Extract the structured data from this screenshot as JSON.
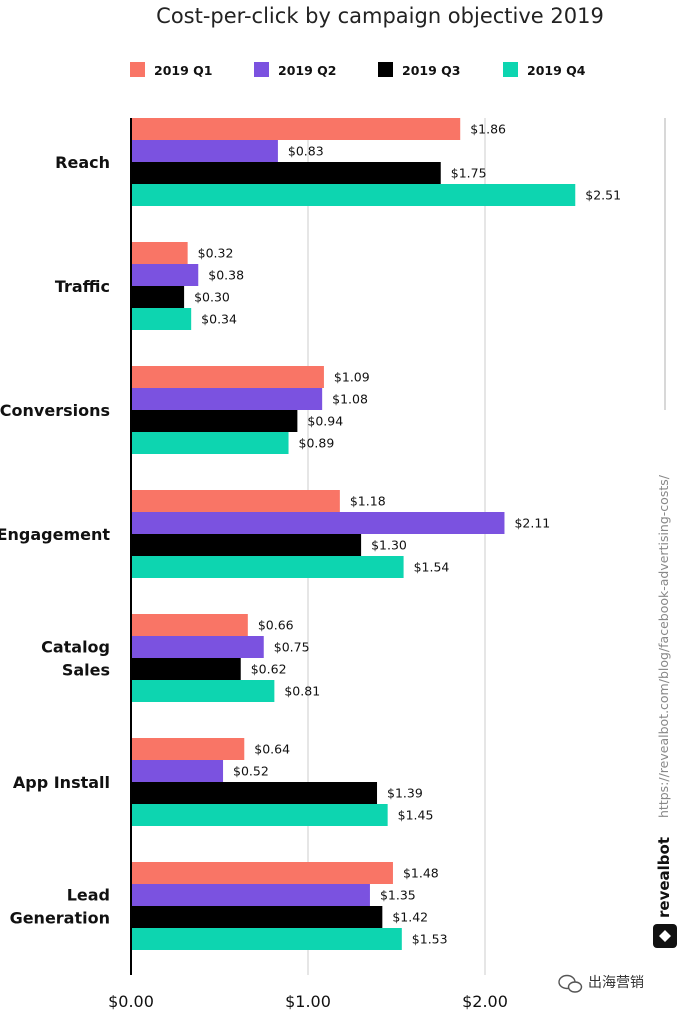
{
  "chart_data": {
    "type": "bar",
    "orientation": "horizontal",
    "title": "Cost-per-click by campaign objective 2019",
    "categories": [
      [
        "Reach"
      ],
      [
        "Traffic"
      ],
      [
        "Conversions"
      ],
      [
        "Engagement"
      ],
      [
        "Catalog",
        "Sales"
      ],
      [
        "App Install"
      ],
      [
        "Lead",
        "Generation"
      ]
    ],
    "series": [
      {
        "name": "2019 Q1",
        "color": "#f97566",
        "values": [
          1.86,
          0.32,
          1.09,
          1.18,
          0.66,
          0.64,
          1.48
        ],
        "labels": [
          "$1.86",
          "$0.32",
          "$1.09",
          "$1.18",
          "$0.66",
          "$0.64",
          "$1.48"
        ]
      },
      {
        "name": "2019 Q2",
        "color": "#7b52e0",
        "values": [
          0.83,
          0.38,
          1.08,
          2.11,
          0.75,
          0.52,
          1.35
        ],
        "labels": [
          "$0.83",
          "$0.38",
          "$1.08",
          "$2.11",
          "$0.75",
          "$0.52",
          "$1.35"
        ]
      },
      {
        "name": "2019 Q3",
        "color": "#000000",
        "values": [
          1.75,
          0.3,
          0.94,
          1.3,
          0.62,
          1.39,
          1.42
        ],
        "labels": [
          "$1.75",
          "$0.30",
          "$0.94",
          "$1.30",
          "$0.62",
          "$1.39",
          "$1.42"
        ]
      },
      {
        "name": "2019 Q4",
        "color": "#0dd5b0",
        "values": [
          2.51,
          0.34,
          0.89,
          1.54,
          0.81,
          1.45,
          1.53
        ],
        "labels": [
          "$2.51",
          "$0.34",
          "$0.89",
          "$1.54",
          "$0.81",
          "$1.45",
          "$1.53"
        ]
      }
    ],
    "xlim": [
      0,
      3
    ],
    "xticks": [
      0,
      1,
      2
    ],
    "xtick_labels": [
      "$0.00",
      "$1.00",
      "$2.00"
    ],
    "grid": true,
    "legend_position": "top"
  },
  "side_url": "https://revealbot.com/blog/facebook-advertising-costs/",
  "brand": "revealbot",
  "watermark": "出海营销",
  "colors": {
    "grid": "#dddddd",
    "axis": "#000000"
  }
}
